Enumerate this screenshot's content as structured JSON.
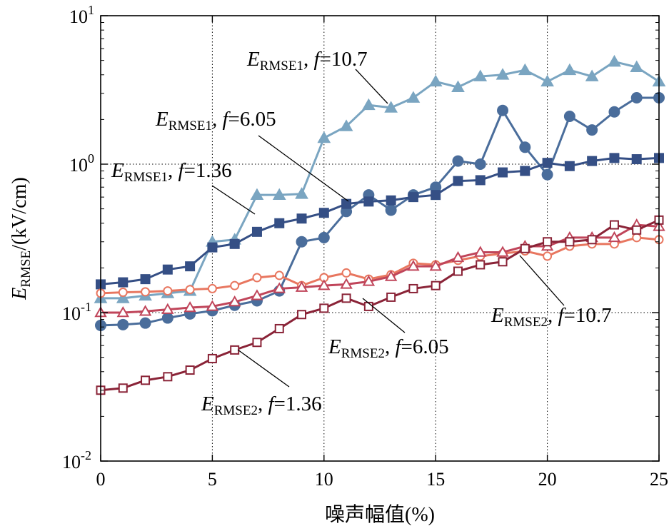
{
  "chart_data": {
    "type": "line",
    "title": "",
    "xlabel": "噪声幅值(%)",
    "ylabel": {
      "main": "E",
      "sub": "RMSE",
      "rest": "/(kV/cm)"
    },
    "yscale": "log",
    "xlim": [
      0,
      25
    ],
    "ylim": [
      0.01,
      10
    ],
    "xticks": [
      "0",
      "5",
      "10",
      "15",
      "20",
      "25"
    ],
    "yticks": [
      {
        "base": "10",
        "exp": "1",
        "value": 10
      },
      {
        "base": "10",
        "exp": "0",
        "value": 1
      },
      {
        "base": "10",
        "exp": "-1",
        "value": 0.1
      },
      {
        "base": "10",
        "exp": "-2",
        "value": 0.01
      }
    ],
    "grid": "dotted at x = 5, 10, 15, 20 and y = 0.1, 1",
    "x": [
      0,
      1,
      2,
      3,
      4,
      5,
      6,
      7,
      8,
      9,
      10,
      11,
      12,
      13,
      14,
      15,
      16,
      17,
      18,
      19,
      20,
      21,
      22,
      23,
      24,
      25
    ],
    "series": [
      {
        "name": "ERMSE1, f=10.7",
        "color": "#7aa5c1",
        "marker": "triangle",
        "filled": true,
        "values": [
          0.125,
          0.125,
          0.13,
          0.135,
          0.14,
          0.3,
          0.31,
          0.62,
          0.62,
          0.63,
          1.5,
          1.8,
          2.5,
          2.4,
          2.8,
          3.6,
          3.3,
          3.9,
          4.0,
          4.3,
          3.6,
          4.3,
          3.9,
          4.9,
          4.5,
          3.6
        ]
      },
      {
        "name": "ERMSE1, f=6.05",
        "color": "#4a6d9b",
        "marker": "circle",
        "filled": true,
        "values": [
          0.082,
          0.083,
          0.085,
          0.092,
          0.098,
          0.103,
          0.112,
          0.12,
          0.14,
          0.3,
          0.32,
          0.48,
          0.62,
          0.49,
          0.62,
          0.7,
          1.05,
          1.0,
          2.3,
          1.3,
          0.85,
          2.1,
          1.7,
          2.25,
          2.8,
          2.8
        ]
      },
      {
        "name": "ERMSE1, f=1.36",
        "color": "#354f85",
        "marker": "square",
        "filled": true,
        "values": [
          0.155,
          0.16,
          0.168,
          0.195,
          0.205,
          0.275,
          0.29,
          0.35,
          0.4,
          0.43,
          0.47,
          0.54,
          0.56,
          0.57,
          0.6,
          0.62,
          0.77,
          0.78,
          0.88,
          0.9,
          1.02,
          0.97,
          1.05,
          1.1,
          1.08,
          1.1
        ]
      },
      {
        "name": "ERMSE2, f=6.05",
        "color": "#e8765f",
        "marker": "circle",
        "filled": false,
        "values": [
          0.135,
          0.137,
          0.138,
          0.14,
          0.143,
          0.145,
          0.152,
          0.172,
          0.178,
          0.152,
          0.172,
          0.185,
          0.168,
          0.18,
          0.215,
          0.21,
          0.225,
          0.24,
          0.25,
          0.26,
          0.24,
          0.28,
          0.29,
          0.29,
          0.32,
          0.31
        ]
      },
      {
        "name": "ERMSE2, f=10.7",
        "color": "#c0455a",
        "marker": "triangle",
        "filled": false,
        "values": [
          0.1,
          0.1,
          0.102,
          0.105,
          0.108,
          0.11,
          0.118,
          0.13,
          0.145,
          0.148,
          0.152,
          0.155,
          0.162,
          0.175,
          0.205,
          0.205,
          0.235,
          0.255,
          0.255,
          0.28,
          0.28,
          0.32,
          0.32,
          0.32,
          0.39,
          0.38
        ]
      },
      {
        "name": "ERMSE2, f=1.36",
        "color": "#8a2337",
        "marker": "square",
        "filled": false,
        "values": [
          0.03,
          0.031,
          0.035,
          0.037,
          0.041,
          0.049,
          0.056,
          0.063,
          0.078,
          0.097,
          0.107,
          0.125,
          0.11,
          0.127,
          0.145,
          0.152,
          0.19,
          0.21,
          0.22,
          0.27,
          0.3,
          0.3,
          0.31,
          0.39,
          0.36,
          0.42
        ]
      }
    ],
    "annotations": [
      {
        "main": "E",
        "sub": "RMSE1",
        "f": "f",
        "text": ", ",
        "val": "=10.7"
      },
      {
        "main": "E",
        "sub": "RMSE1",
        "f": "f",
        "text": ", ",
        "val": "=6.05"
      },
      {
        "main": "E",
        "sub": "RMSE1",
        "f": "f",
        "text": ", ",
        "val": "=1.36"
      },
      {
        "main": "E",
        "sub": "RMSE2",
        "f": "f",
        "text": ", ",
        "val": "=10.7"
      },
      {
        "main": "E",
        "sub": "RMSE2",
        "f": "f",
        "text": ", ",
        "val": "=6.05"
      },
      {
        "main": "E",
        "sub": "RMSE2",
        "f": "f",
        "text": ", ",
        "val": "=1.36"
      }
    ]
  }
}
